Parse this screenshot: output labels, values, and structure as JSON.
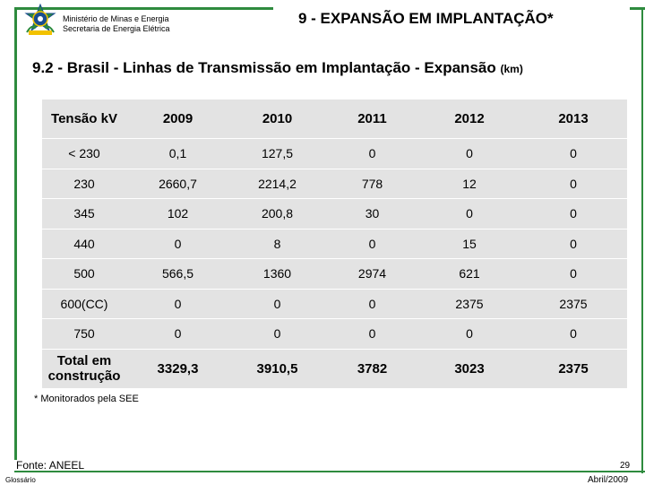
{
  "header": {
    "ministry_line1": "Ministério de Minas e Energia",
    "ministry_line2": "Secretaria de Energia Elétrica",
    "title": "9 - EXPANSÃO EM IMPLANTAÇÃO*"
  },
  "subtitle": {
    "text": "9.2 - Brasil - Linhas de Transmissão em Implantação - Expansão",
    "unit": "(km)"
  },
  "table": {
    "headers": [
      "Tensão kV",
      "2009",
      "2010",
      "2011",
      "2012",
      "2013"
    ],
    "rows": [
      [
        "< 230",
        "0,1",
        "127,5",
        "0",
        "0",
        "0"
      ],
      [
        "230",
        "2660,7",
        "2214,2",
        "778",
        "12",
        "0"
      ],
      [
        "345",
        "102",
        "200,8",
        "30",
        "0",
        "0"
      ],
      [
        "440",
        "0",
        "8",
        "0",
        "15",
        "0"
      ],
      [
        "500",
        "566,5",
        "1360",
        "2974",
        "621",
        "0"
      ],
      [
        "600(CC)",
        "0",
        "0",
        "0",
        "2375",
        "2375"
      ],
      [
        "750",
        "0",
        "0",
        "0",
        "0",
        "0"
      ]
    ],
    "total": [
      "Total em construção",
      "3329,3",
      "3910,5",
      "3782",
      "3023",
      "2375"
    ]
  },
  "footnote": "* Monitorados pela SEE",
  "source": "Fonte: ANEEL",
  "glossary": "Glossário",
  "page_number": "29",
  "date": "Abril/2009",
  "colors": {
    "frame": "#2e8b3e",
    "table_bg": "#e3e3e3"
  }
}
